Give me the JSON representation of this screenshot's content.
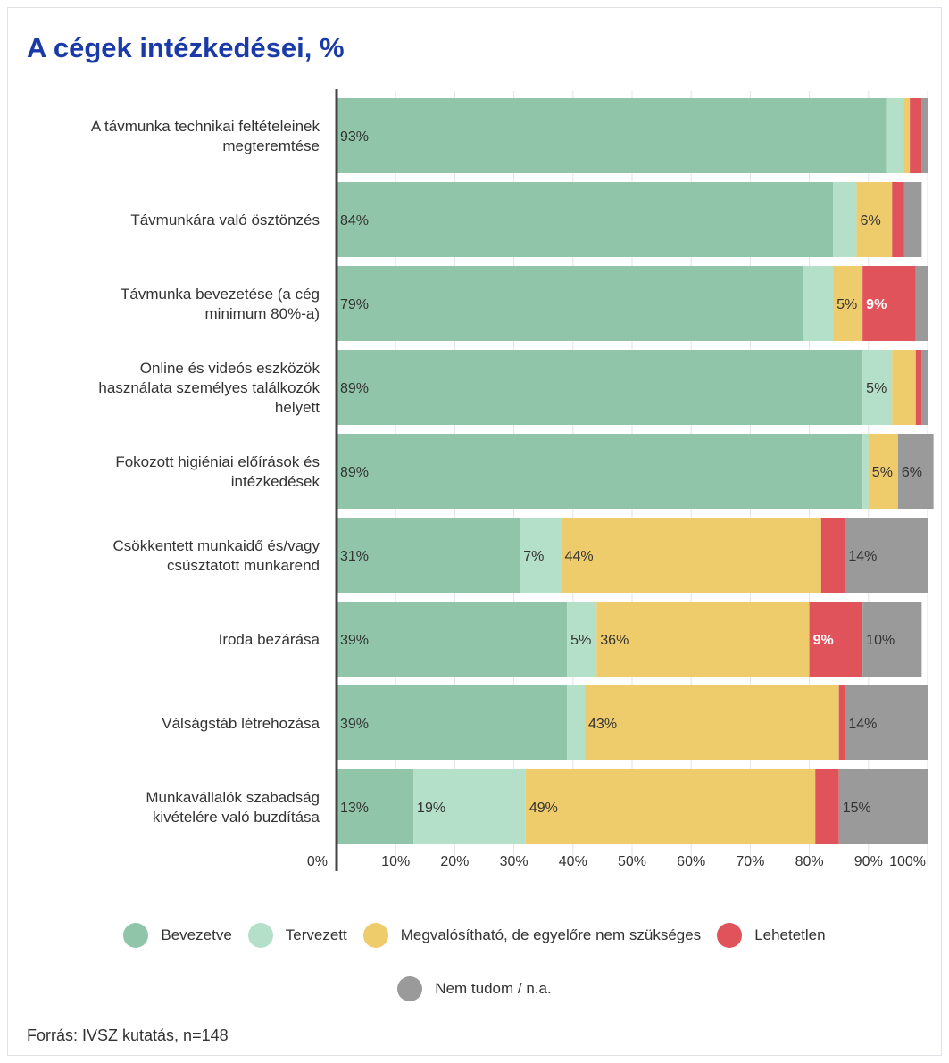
{
  "title": "A cégek intézkedései, %",
  "source": "Forrás: IVSZ kutatás, n=148",
  "colors": {
    "Bevezetve": "#90c5a9",
    "Tervezett": "#b4dfc8",
    "Megvalósítható, de egyelőre nem szükséges": "#eecb6b",
    "Lehetetlen": "#e0535a",
    "Nem tudom / n.a.": "#9a9a9a"
  },
  "legend": [
    {
      "label": "Bevezetve",
      "color": "#90c5a9"
    },
    {
      "label": "Tervezett",
      "color": "#b4dfc8"
    },
    {
      "label": "Megvalósítható, de egyelőre nem szükséges",
      "color": "#eecb6b"
    },
    {
      "label": "Lehetetlen",
      "color": "#e0535a"
    },
    {
      "label": "Nem tudom / n.a.",
      "color": "#9a9a9a"
    }
  ],
  "chart_data": {
    "type": "bar",
    "orientation": "horizontal",
    "stacked": true,
    "title": "A cégek intézkedései, %",
    "xlim": [
      0,
      100
    ],
    "x_ticks": [
      "0%",
      "10%",
      "20%",
      "30%",
      "40%",
      "50%",
      "60%",
      "70%",
      "80%",
      "90%",
      "100%"
    ],
    "grid": true,
    "legend_position": "bottom",
    "categories": [
      [
        "A távmunka technikai feltételeinek",
        "megteremtése"
      ],
      [
        "Távmunkára való ösztönzés"
      ],
      [
        "Távmunka bevezetése (a cég",
        "minimum 80%-a)"
      ],
      [
        "Online és videós eszközök",
        "használata személyes találkozók",
        "helyett"
      ],
      [
        "Fokozott higiéniai előírások és",
        "intézkedések"
      ],
      [
        "Csökkentett munkaidő és/vagy",
        "csúsztatott munkarend"
      ],
      [
        "Iroda bezárása"
      ],
      [
        "Válságstáb létrehozása"
      ],
      [
        "Munkavállalók szabadság",
        "kivételére való buzdítása"
      ]
    ],
    "series": [
      {
        "name": "Bevezetve",
        "values": [
          93,
          84,
          79,
          89,
          89,
          31,
          39,
          39,
          13
        ],
        "labels": [
          "93%",
          "84%",
          "79%",
          "89%",
          "89%",
          "31%",
          "39%",
          "39%",
          "13%"
        ]
      },
      {
        "name": "Tervezett",
        "values": [
          3,
          4,
          5,
          5,
          1,
          7,
          5,
          3,
          19
        ],
        "labels": [
          "",
          "",
          "",
          "5%",
          "",
          "7%",
          "5%",
          "",
          "19%"
        ]
      },
      {
        "name": "Megvalósítható, de egyelőre nem szükséges",
        "values": [
          1,
          6,
          5,
          4,
          5,
          44,
          36,
          43,
          49
        ],
        "labels": [
          "",
          "6%",
          "5%",
          "",
          "5%",
          "44%",
          "36%",
          "43%",
          "49%"
        ]
      },
      {
        "name": "Lehetetlen",
        "values": [
          2,
          2,
          9,
          1,
          0,
          4,
          9,
          1,
          4
        ],
        "labels": [
          "",
          "",
          "9%",
          "",
          "",
          "",
          "9%",
          "",
          ""
        ]
      },
      {
        "name": "Nem tudom / n.a.",
        "values": [
          1,
          3,
          2,
          1,
          6,
          14,
          10,
          14,
          15
        ],
        "labels": [
          "",
          "",
          "",
          "",
          "6%",
          "14%",
          "10%",
          "14%",
          "15%"
        ]
      }
    ]
  }
}
